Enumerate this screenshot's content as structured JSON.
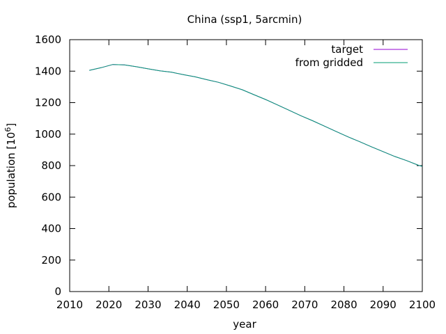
{
  "chart_data": {
    "type": "line",
    "title": "China (ssp1, 5arcmin)",
    "xlabel": "year",
    "ylabel": "population [10",
    "ylabel_sup": "6",
    "ylabel_close": "]",
    "xlim": [
      2010,
      2100
    ],
    "ylim": [
      0,
      1600
    ],
    "xticks": [
      2010,
      2020,
      2030,
      2040,
      2050,
      2060,
      2070,
      2080,
      2090,
      2100
    ],
    "yticks": [
      0,
      200,
      400,
      600,
      800,
      1000,
      1200,
      1400,
      1600
    ],
    "legend_position": "top-right",
    "grid": false,
    "series": [
      {
        "name": "target",
        "color": "#9400d3",
        "x": [
          2015,
          2018,
          2021,
          2024,
          2027,
          2030,
          2033,
          2036,
          2039,
          2042,
          2045,
          2048,
          2051,
          2054,
          2057,
          2060,
          2063,
          2066,
          2069,
          2072,
          2075,
          2078,
          2081,
          2084,
          2087,
          2090,
          2093,
          2096,
          2099,
          2100
        ],
        "y": [
          1405,
          1422,
          1442,
          1440,
          1428,
          1415,
          1402,
          1393,
          1378,
          1364,
          1346,
          1329,
          1306,
          1282,
          1251,
          1220,
          1186,
          1152,
          1117,
          1085,
          1051,
          1017,
          983,
          952,
          920,
          889,
          858,
          832,
          802,
          795
        ]
      },
      {
        "name": "from gridded",
        "color": "#009e73",
        "x": [
          2015,
          2018,
          2021,
          2024,
          2027,
          2030,
          2033,
          2036,
          2039,
          2042,
          2045,
          2048,
          2051,
          2054,
          2057,
          2060,
          2063,
          2066,
          2069,
          2072,
          2075,
          2078,
          2081,
          2084,
          2087,
          2090,
          2093,
          2096,
          2099,
          2100
        ],
        "y": [
          1405,
          1422,
          1442,
          1440,
          1428,
          1415,
          1402,
          1393,
          1378,
          1364,
          1346,
          1329,
          1306,
          1282,
          1251,
          1220,
          1186,
          1152,
          1117,
          1085,
          1051,
          1017,
          983,
          952,
          920,
          889,
          858,
          832,
          802,
          795
        ]
      }
    ]
  }
}
